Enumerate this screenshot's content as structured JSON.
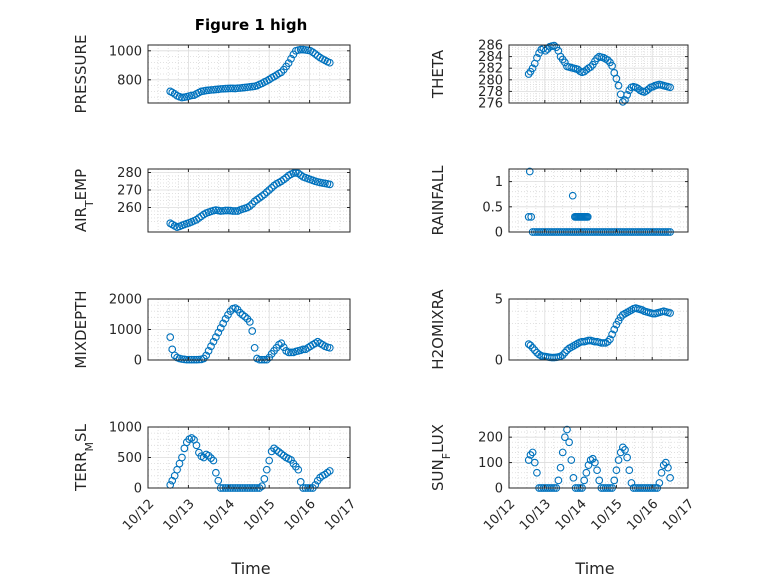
{
  "figure": {
    "title": "Figure 1 high",
    "xlabel": "Time"
  },
  "chart_data": [
    {
      "type": "scatter",
      "ylabel": "PRESSURE",
      "xlim": [
        0,
        5
      ],
      "ylim": [
        640,
        1040
      ],
      "yticks": [
        800,
        1000
      ],
      "xticks": [
        "10/12",
        "10/13",
        "10/14",
        "10/15",
        "10/16",
        "10/17"
      ],
      "grid": true,
      "minor_grid": true,
      "color": "#0072BD",
      "x": [
        0.55,
        0.6,
        0.66,
        0.72,
        0.78,
        0.84,
        0.9,
        0.96,
        1.02,
        1.08,
        1.14,
        1.2,
        1.26,
        1.32,
        1.38,
        1.44,
        1.5,
        1.56,
        1.62,
        1.68,
        1.74,
        1.8,
        1.86,
        1.92,
        1.98,
        2.04,
        2.1,
        2.16,
        2.22,
        2.28,
        2.34,
        2.4,
        2.46,
        2.52,
        2.58,
        2.64,
        2.7,
        2.76,
        2.82,
        2.88,
        2.94,
        3.0,
        3.06,
        3.12,
        3.18,
        3.24,
        3.3,
        3.36,
        3.42,
        3.48,
        3.54,
        3.6,
        3.66,
        3.72,
        3.78,
        3.84,
        3.9,
        3.96,
        4.02,
        4.08,
        4.14,
        4.2,
        4.26,
        4.32,
        4.38,
        4.44,
        4.5
      ],
      "y": [
        720,
        713,
        703,
        690,
        683,
        678,
        680,
        683,
        688,
        692,
        694,
        703,
        712,
        720,
        723,
        726,
        728,
        730,
        731,
        733,
        735,
        737,
        738,
        739,
        740,
        741,
        741,
        740,
        742,
        743,
        745,
        747,
        749,
        751,
        753,
        755,
        760,
        768,
        775,
        785,
        792,
        802,
        813,
        822,
        832,
        843,
        852,
        870,
        892,
        915,
        945,
        975,
        1000,
        1005,
        1008,
        1008,
        1006,
        1004,
        1000,
        990,
        978,
        965,
        953,
        943,
        935,
        925,
        918
      ]
    },
    {
      "type": "scatter",
      "ylabel": "THETA",
      "xlim": [
        0,
        5
      ],
      "ylim": [
        276,
        286
      ],
      "yticks": [
        276,
        278,
        280,
        282,
        284,
        286
      ],
      "xticks": [
        "10/12",
        "10/13",
        "10/14",
        "10/15",
        "10/16",
        "10/17"
      ],
      "grid": true,
      "minor_grid": true,
      "color": "#0072BD",
      "x": [
        0.55,
        0.6,
        0.66,
        0.72,
        0.78,
        0.84,
        0.9,
        0.96,
        1.02,
        1.08,
        1.14,
        1.2,
        1.26,
        1.32,
        1.38,
        1.44,
        1.5,
        1.56,
        1.62,
        1.68,
        1.74,
        1.8,
        1.86,
        1.92,
        1.98,
        2.04,
        2.1,
        2.16,
        2.22,
        2.28,
        2.34,
        2.4,
        2.46,
        2.52,
        2.58,
        2.64,
        2.7,
        2.76,
        2.82,
        2.88,
        2.94,
        3.0,
        3.06,
        3.12,
        3.18,
        3.24,
        3.3,
        3.36,
        3.42,
        3.48,
        3.54,
        3.6,
        3.66,
        3.72,
        3.78,
        3.84,
        3.9,
        3.96,
        4.02,
        4.08,
        4.14,
        4.2,
        4.26,
        4.32,
        4.38,
        4.44,
        4.5
      ],
      "y": [
        281,
        281.4,
        282,
        282.8,
        283.8,
        284.6,
        285.2,
        285.4,
        285,
        285.3,
        285.7,
        285.8,
        285.9,
        285.6,
        285,
        284,
        283.5,
        283,
        282.3,
        282.2,
        282.1,
        282,
        281.9,
        281.8,
        281.5,
        281.3,
        281.4,
        281.7,
        282,
        282.2,
        282.6,
        283.2,
        283.7,
        284,
        283.9,
        283.8,
        283.6,
        283.4,
        283,
        282.4,
        281.2,
        280.2,
        279,
        277.5,
        276.2,
        276.5,
        277.4,
        278.2,
        278.7,
        278.8,
        278.7,
        278.5,
        278.2,
        278,
        277.9,
        278.1,
        278.4,
        278.7,
        278.8,
        279,
        279.1,
        279.2,
        279.1,
        279,
        278.9,
        278.8,
        278.7
      ]
    },
    {
      "type": "scatter",
      "ylabel": "AIR_TEMP",
      "xlim": [
        0,
        5
      ],
      "ylim": [
        246,
        282
      ],
      "yticks": [
        260,
        270,
        280
      ],
      "xticks": [
        "10/12",
        "10/13",
        "10/14",
        "10/15",
        "10/16",
        "10/17"
      ],
      "grid": true,
      "minor_grid": true,
      "color": "#0072BD",
      "x": [
        0.55,
        0.6,
        0.66,
        0.72,
        0.78,
        0.84,
        0.9,
        0.96,
        1.02,
        1.08,
        1.14,
        1.2,
        1.26,
        1.32,
        1.38,
        1.44,
        1.5,
        1.56,
        1.62,
        1.68,
        1.74,
        1.8,
        1.86,
        1.92,
        1.98,
        2.04,
        2.1,
        2.16,
        2.22,
        2.28,
        2.34,
        2.4,
        2.46,
        2.52,
        2.58,
        2.64,
        2.7,
        2.76,
        2.82,
        2.88,
        2.94,
        3.0,
        3.06,
        3.12,
        3.18,
        3.24,
        3.3,
        3.36,
        3.42,
        3.48,
        3.54,
        3.6,
        3.66,
        3.72,
        3.78,
        3.84,
        3.9,
        3.96,
        4.02,
        4.08,
        4.14,
        4.2,
        4.26,
        4.32,
        4.38,
        4.44,
        4.5
      ],
      "y": [
        251,
        250.3,
        249.5,
        248.8,
        249.2,
        249.8,
        250.3,
        250.8,
        251.2,
        251.8,
        252.4,
        253,
        254,
        255,
        256,
        256.8,
        257.3,
        257.8,
        258.2,
        258.5,
        258.3,
        258,
        258.1,
        258.3,
        258.3,
        258.2,
        258,
        258,
        258,
        258.6,
        259.1,
        259.5,
        260,
        260.8,
        262,
        263.5,
        264.5,
        265.5,
        266.5,
        267.5,
        268.8,
        270,
        271.2,
        272.5,
        273.5,
        274.2,
        275,
        276,
        277,
        278.2,
        279,
        279.6,
        279.8,
        279.5,
        278.5,
        277.5,
        277,
        276.5,
        276,
        275.5,
        275,
        274.6,
        274.3,
        274,
        273.8,
        273.5,
        273.2
      ]
    },
    {
      "type": "scatter",
      "ylabel": "RAINFALL",
      "xlim": [
        0,
        5
      ],
      "ylim": [
        0,
        1.25
      ],
      "yticks": [
        0,
        0.5,
        1
      ],
      "xticks": [
        "10/12",
        "10/13",
        "10/14",
        "10/15",
        "10/16",
        "10/17"
      ],
      "grid": true,
      "minor_grid": true,
      "color": "#0072BD",
      "x": [
        0.55,
        0.58,
        0.62,
        0.66,
        0.72,
        0.78,
        0.84,
        0.9,
        0.96,
        1.02,
        1.08,
        1.14,
        1.2,
        1.26,
        1.32,
        1.38,
        1.44,
        1.5,
        1.56,
        1.62,
        1.68,
        1.74,
        1.8,
        1.86,
        1.92,
        1.98,
        2.04,
        2.1,
        2.16,
        2.22,
        2.28,
        2.34,
        2.4,
        2.46,
        2.52,
        2.58,
        2.64,
        2.7,
        2.76,
        2.82,
        2.88,
        2.94,
        3.0,
        3.06,
        3.12,
        3.18,
        3.24,
        3.3,
        3.36,
        3.42,
        3.48,
        3.54,
        3.6,
        3.66,
        3.72,
        3.78,
        3.84,
        3.9,
        3.96,
        4.02,
        4.08,
        4.14,
        4.2,
        4.26,
        4.32,
        4.38,
        4.44,
        4.5,
        1.78,
        1.84,
        1.87,
        1.9,
        1.93,
        1.96,
        1.99,
        2.02,
        2.05,
        2.08,
        2.11,
        2.14,
        2.17,
        2.2
      ],
      "y": [
        0.3,
        1.2,
        0.3,
        0,
        0,
        0,
        0,
        0,
        0,
        0,
        0,
        0,
        0,
        0,
        0,
        0,
        0,
        0,
        0,
        0,
        0,
        0,
        0,
        0,
        0,
        0,
        0,
        0,
        0,
        0,
        0,
        0,
        0,
        0,
        0,
        0,
        0,
        0,
        0,
        0,
        0,
        0,
        0,
        0,
        0,
        0,
        0,
        0,
        0,
        0,
        0,
        0,
        0,
        0,
        0,
        0,
        0,
        0,
        0,
        0,
        0,
        0,
        0,
        0,
        0,
        0,
        0,
        0,
        0.72,
        0.3,
        0.3,
        0.3,
        0.3,
        0.3,
        0.3,
        0.3,
        0.3,
        0.3,
        0.3,
        0.3,
        0.3,
        0.3
      ]
    },
    {
      "type": "scatter",
      "ylabel": "MIXDEPTH",
      "xlim": [
        0,
        5
      ],
      "ylim": [
        0,
        2000
      ],
      "yticks": [
        0,
        1000,
        2000
      ],
      "xticks": [
        "10/12",
        "10/13",
        "10/14",
        "10/15",
        "10/16",
        "10/17"
      ],
      "grid": true,
      "minor_grid": true,
      "color": "#0072BD",
      "x": [
        0.55,
        0.6,
        0.66,
        0.72,
        0.78,
        0.84,
        0.9,
        0.96,
        1.02,
        1.08,
        1.14,
        1.2,
        1.26,
        1.32,
        1.38,
        1.44,
        1.5,
        1.56,
        1.62,
        1.68,
        1.74,
        1.8,
        1.86,
        1.92,
        1.98,
        2.04,
        2.1,
        2.16,
        2.22,
        2.28,
        2.34,
        2.4,
        2.46,
        2.52,
        2.58,
        2.64,
        2.7,
        2.76,
        2.82,
        2.88,
        2.94,
        3.0,
        3.06,
        3.12,
        3.18,
        3.24,
        3.3,
        3.36,
        3.42,
        3.48,
        3.54,
        3.6,
        3.66,
        3.72,
        3.78,
        3.84,
        3.9,
        3.96,
        4.02,
        4.08,
        4.14,
        4.2,
        4.26,
        4.32,
        4.38,
        4.44,
        4.5
      ],
      "y": [
        750,
        350,
        150,
        80,
        50,
        30,
        20,
        10,
        10,
        10,
        10,
        10,
        15,
        20,
        50,
        150,
        300,
        450,
        600,
        750,
        900,
        1050,
        1200,
        1350,
        1480,
        1600,
        1680,
        1700,
        1650,
        1550,
        1480,
        1420,
        1350,
        1250,
        950,
        400,
        50,
        10,
        10,
        10,
        10,
        80,
        200,
        300,
        400,
        500,
        550,
        420,
        300,
        250,
        250,
        250,
        280,
        300,
        320,
        350,
        350,
        400,
        450,
        500,
        550,
        600,
        550,
        500,
        450,
        420,
        400
      ]
    },
    {
      "type": "scatter",
      "ylabel": "H2OMIXRA",
      "xlim": [
        0,
        5
      ],
      "ylim": [
        0,
        5
      ],
      "yticks": [
        0,
        5
      ],
      "xticks": [
        "10/12",
        "10/13",
        "10/14",
        "10/15",
        "10/16",
        "10/17"
      ],
      "grid": true,
      "minor_grid": true,
      "color": "#0072BD",
      "x": [
        0.55,
        0.6,
        0.66,
        0.72,
        0.78,
        0.84,
        0.9,
        0.96,
        1.02,
        1.08,
        1.14,
        1.2,
        1.26,
        1.32,
        1.38,
        1.44,
        1.5,
        1.56,
        1.62,
        1.68,
        1.74,
        1.8,
        1.86,
        1.92,
        1.98,
        2.04,
        2.1,
        2.16,
        2.22,
        2.28,
        2.34,
        2.4,
        2.46,
        2.52,
        2.58,
        2.64,
        2.7,
        2.76,
        2.82,
        2.88,
        2.94,
        3.0,
        3.06,
        3.12,
        3.18,
        3.24,
        3.3,
        3.36,
        3.42,
        3.48,
        3.54,
        3.6,
        3.66,
        3.72,
        3.78,
        3.84,
        3.9,
        3.96,
        4.02,
        4.08,
        4.14,
        4.2,
        4.26,
        4.32,
        4.38,
        4.44,
        4.5
      ],
      "y": [
        1.3,
        1.2,
        1.0,
        0.8,
        0.6,
        0.45,
        0.35,
        0.3,
        0.28,
        0.25,
        0.22,
        0.2,
        0.2,
        0.22,
        0.25,
        0.3,
        0.4,
        0.6,
        0.8,
        0.95,
        1.05,
        1.15,
        1.25,
        1.35,
        1.45,
        1.5,
        1.5,
        1.55,
        1.6,
        1.6,
        1.55,
        1.5,
        1.5,
        1.45,
        1.4,
        1.4,
        1.4,
        1.5,
        1.7,
        2.1,
        2.5,
        2.9,
        3.2,
        3.5,
        3.7,
        3.8,
        3.9,
        4.0,
        4.1,
        4.2,
        4.25,
        4.2,
        4.15,
        4.1,
        4.0,
        3.95,
        3.9,
        3.85,
        3.8,
        3.8,
        3.85,
        3.9,
        3.95,
        4.0,
        3.95,
        3.9,
        3.85
      ]
    },
    {
      "type": "scatter",
      "ylabel": "TERR_MSL",
      "xlim": [
        0,
        5
      ],
      "ylim": [
        0,
        1000
      ],
      "yticks": [
        0,
        500,
        1000
      ],
      "xticks": [
        "10/12",
        "10/13",
        "10/14",
        "10/15",
        "10/16",
        "10/17"
      ],
      "grid": true,
      "minor_grid": true,
      "color": "#0072BD",
      "x": [
        0.55,
        0.6,
        0.66,
        0.72,
        0.78,
        0.84,
        0.9,
        0.96,
        1.02,
        1.08,
        1.14,
        1.2,
        1.26,
        1.32,
        1.38,
        1.44,
        1.5,
        1.56,
        1.62,
        1.68,
        1.74,
        1.8,
        1.86,
        1.92,
        1.98,
        2.04,
        2.1,
        2.16,
        2.22,
        2.28,
        2.34,
        2.4,
        2.46,
        2.52,
        2.58,
        2.64,
        2.7,
        2.76,
        2.82,
        2.88,
        2.94,
        3.0,
        3.06,
        3.12,
        3.18,
        3.24,
        3.3,
        3.36,
        3.42,
        3.48,
        3.54,
        3.6,
        3.66,
        3.72,
        3.78,
        3.84,
        3.9,
        3.96,
        4.02,
        4.08,
        4.14,
        4.2,
        4.26,
        4.32,
        4.38,
        4.44,
        4.5
      ],
      "y": [
        50,
        120,
        200,
        300,
        400,
        500,
        650,
        750,
        800,
        820,
        790,
        700,
        580,
        520,
        500,
        550,
        530,
        490,
        450,
        250,
        120,
        0,
        0,
        0,
        0,
        0,
        0,
        0,
        0,
        0,
        0,
        0,
        0,
        0,
        0,
        0,
        0,
        0,
        30,
        150,
        300,
        450,
        600,
        650,
        620,
        590,
        560,
        530,
        500,
        480,
        460,
        400,
        350,
        300,
        100,
        0,
        0,
        0,
        0,
        0,
        50,
        120,
        170,
        200,
        220,
        250,
        280
      ]
    },
    {
      "type": "scatter",
      "ylabel": "SUN_FLUX",
      "xlim": [
        0,
        5
      ],
      "ylim": [
        0,
        240
      ],
      "yticks": [
        0,
        100,
        200
      ],
      "xticks": [
        "10/12",
        "10/13",
        "10/14",
        "10/15",
        "10/16",
        "10/17"
      ],
      "grid": true,
      "minor_grid": true,
      "color": "#0072BD",
      "x": [
        0.55,
        0.6,
        0.66,
        0.72,
        0.78,
        0.84,
        0.9,
        0.96,
        1.02,
        1.08,
        1.14,
        1.2,
        1.26,
        1.32,
        1.38,
        1.44,
        1.5,
        1.56,
        1.62,
        1.68,
        1.74,
        1.8,
        1.86,
        1.92,
        1.98,
        2.04,
        2.1,
        2.16,
        2.22,
        2.28,
        2.34,
        2.4,
        2.46,
        2.52,
        2.58,
        2.64,
        2.7,
        2.76,
        2.82,
        2.88,
        2.94,
        3.0,
        3.06,
        3.12,
        3.18,
        3.24,
        3.3,
        3.36,
        3.42,
        3.48,
        3.54,
        3.6,
        3.66,
        3.72,
        3.78,
        3.84,
        3.9,
        3.96,
        4.02,
        4.08,
        4.14,
        4.2,
        4.26,
        4.32,
        4.38,
        4.44,
        4.5
      ],
      "y": [
        110,
        130,
        140,
        100,
        60,
        0,
        0,
        0,
        0,
        0,
        0,
        0,
        0,
        0,
        30,
        80,
        140,
        200,
        230,
        180,
        110,
        40,
        0,
        0,
        0,
        0,
        30,
        60,
        90,
        110,
        115,
        100,
        70,
        30,
        0,
        0,
        0,
        0,
        0,
        0,
        30,
        70,
        110,
        140,
        160,
        150,
        120,
        70,
        20,
        0,
        0,
        0,
        0,
        0,
        0,
        0,
        0,
        0,
        0,
        0,
        0,
        20,
        60,
        90,
        100,
        80,
        40
      ]
    }
  ]
}
